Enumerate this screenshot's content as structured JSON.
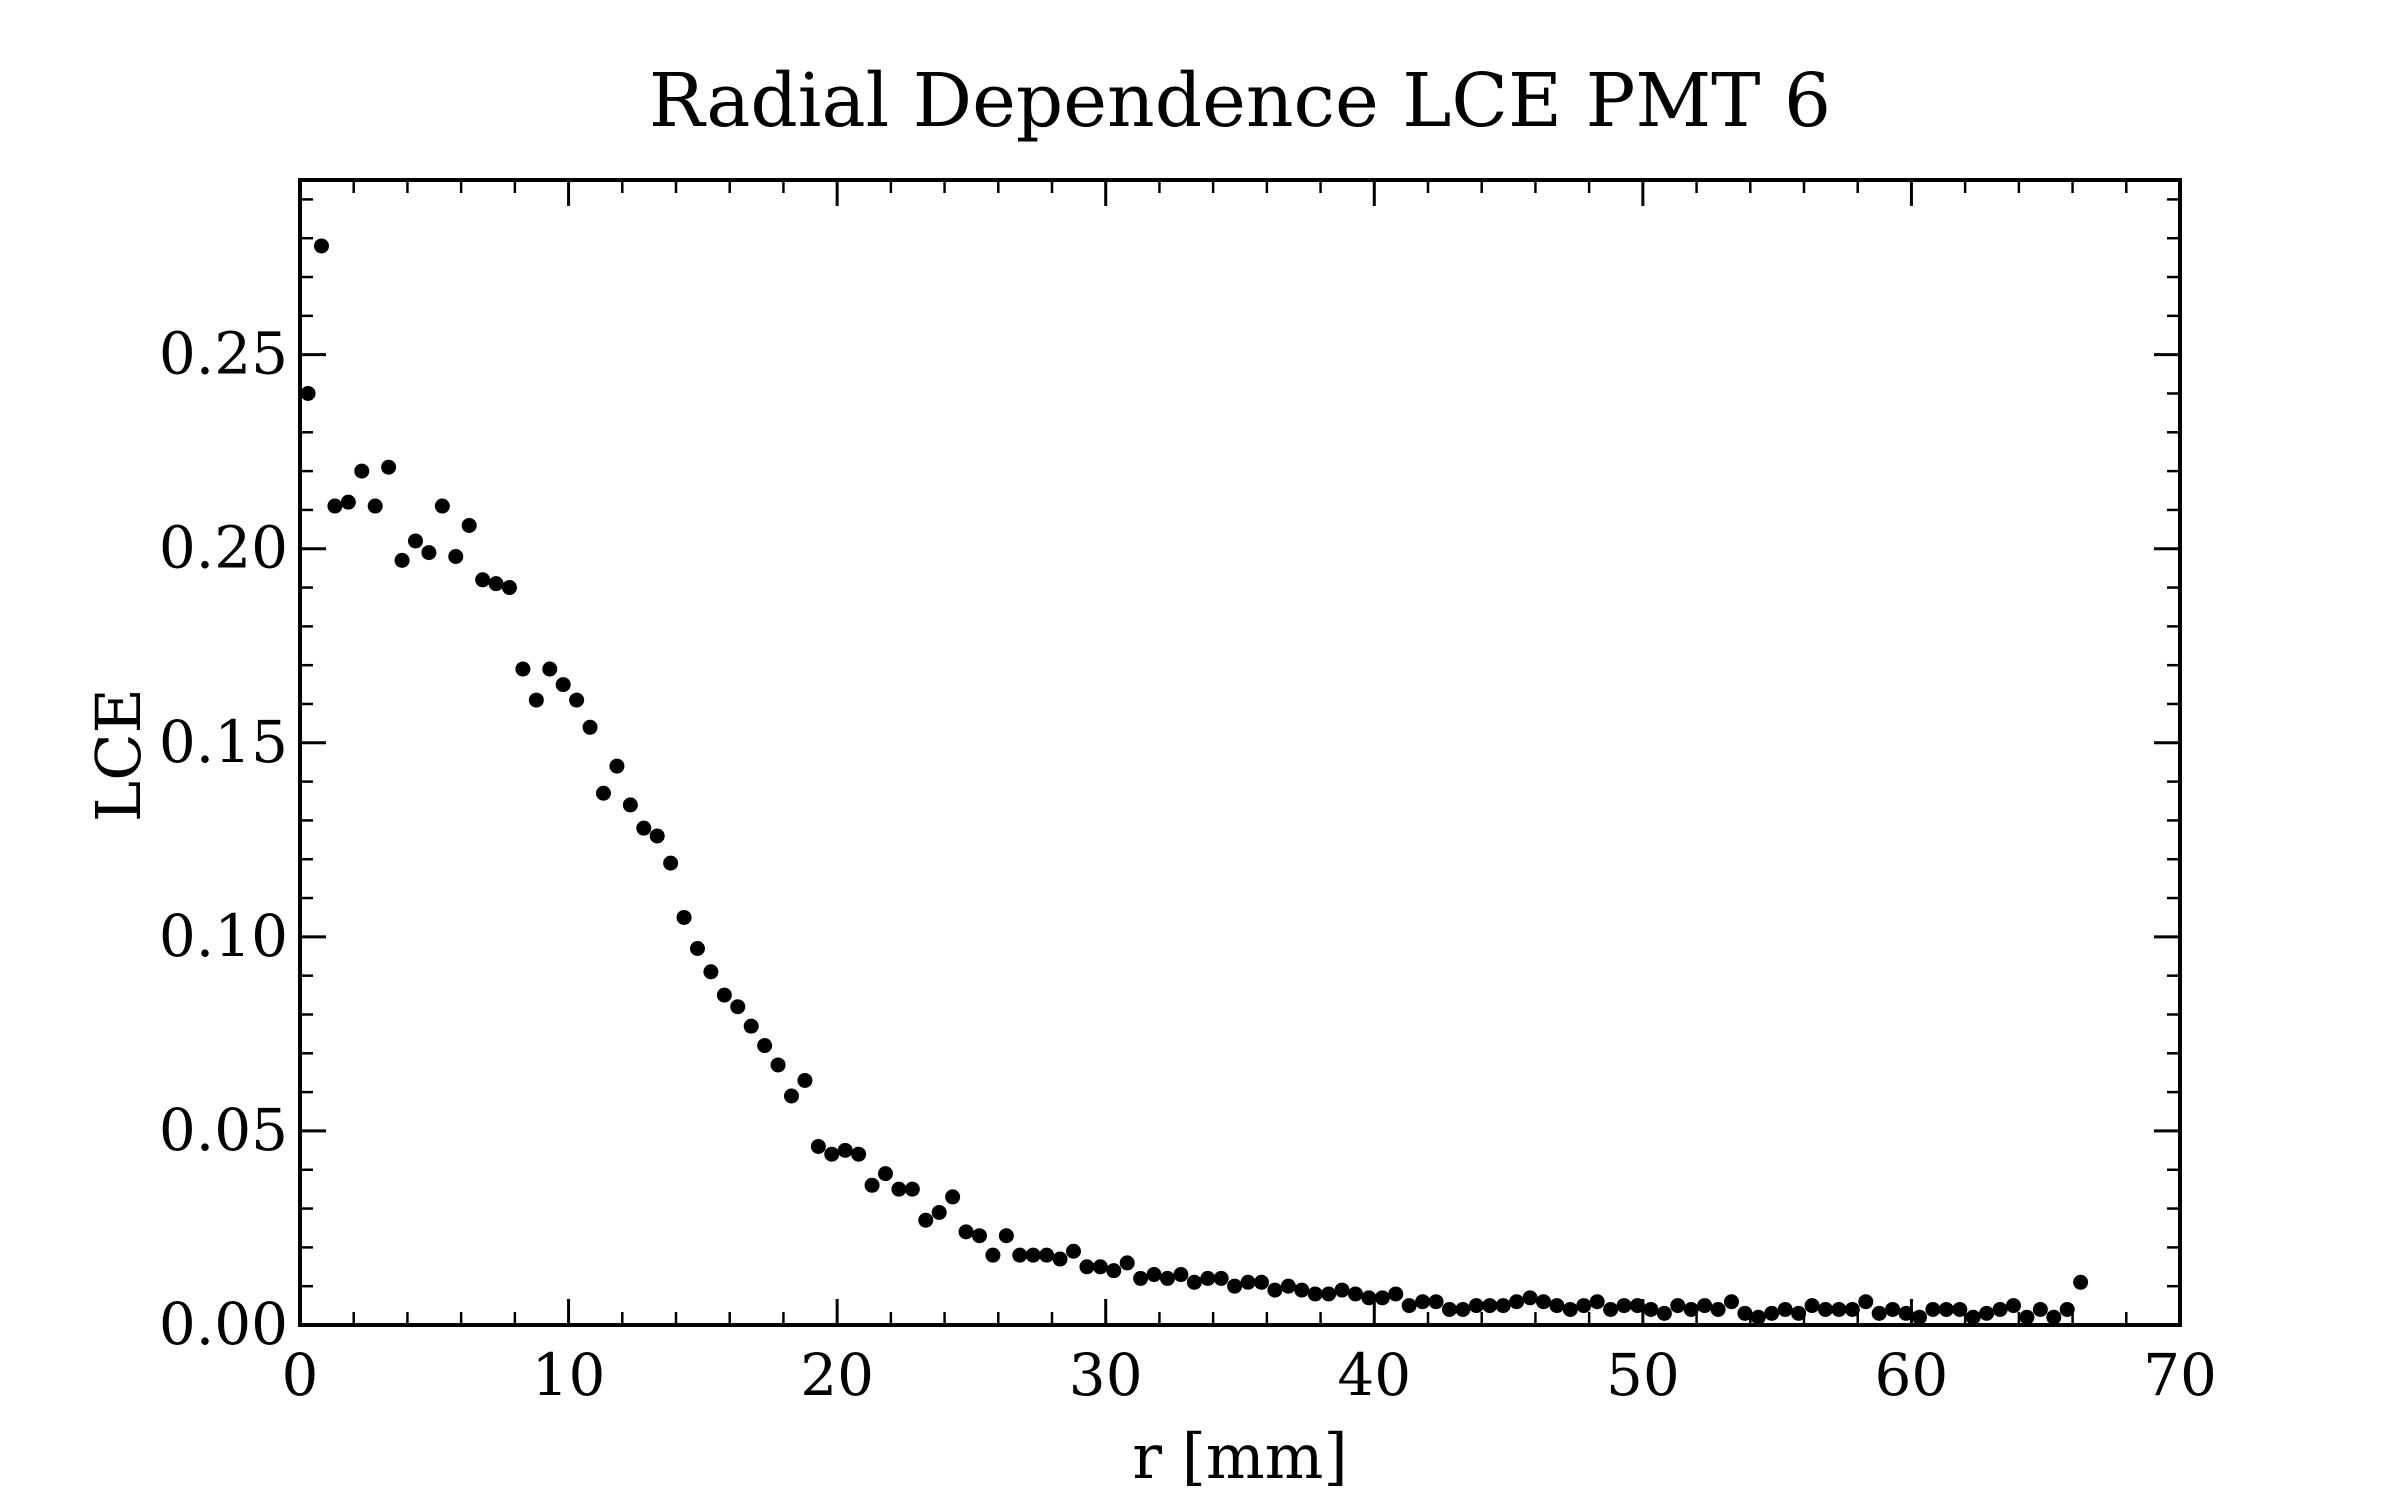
{
  "chart_data": {
    "type": "scatter",
    "title": "Radial Dependence LCE PMT 6",
    "xlabel": "r [mm]",
    "ylabel": "LCE",
    "xlim": [
      0,
      70
    ],
    "ylim": [
      0,
      0.295
    ],
    "xticks": [
      "0",
      "10",
      "20",
      "30",
      "40",
      "50",
      "60",
      "70"
    ],
    "yticks": [
      "0.00",
      "0.05",
      "0.10",
      "0.15",
      "0.20",
      "0.25"
    ],
    "grid": false,
    "legend": false,
    "marker_color": "#000000",
    "series": [
      {
        "x": [
          0.3,
          0.8,
          1.3,
          1.8,
          2.3,
          2.8,
          3.3,
          3.8,
          4.3,
          4.8,
          5.3,
          5.8,
          6.3,
          6.8,
          7.3,
          7.8,
          8.3,
          8.8,
          9.3,
          9.8,
          10.3,
          10.8,
          11.3,
          11.8,
          12.3,
          12.8,
          13.3,
          13.8,
          14.3,
          14.8,
          15.3,
          15.8,
          16.3,
          16.8,
          17.3,
          17.8,
          18.3,
          18.8,
          19.3,
          19.8,
          20.3,
          20.8,
          21.3,
          21.8,
          22.3,
          22.8,
          23.3,
          23.8,
          24.3,
          24.8,
          25.3,
          25.8,
          26.3,
          26.8,
          27.3,
          27.8,
          28.3,
          28.8,
          29.3,
          29.8,
          30.3,
          30.8,
          31.3,
          31.8,
          32.3,
          32.8,
          33.3,
          33.8,
          34.3,
          34.8,
          35.3,
          35.8,
          36.3,
          36.8,
          37.3,
          37.8,
          38.3,
          38.8,
          39.3,
          39.8,
          40.3,
          40.8,
          41.3,
          41.8,
          42.3,
          42.8,
          43.3,
          43.8,
          44.3,
          44.8,
          45.3,
          45.8,
          46.3,
          46.8,
          47.3,
          47.8,
          48.3,
          48.8,
          49.3,
          49.8,
          50.3,
          50.8,
          51.3,
          51.8,
          52.3,
          52.8,
          53.3,
          53.8,
          54.3,
          54.8,
          55.3,
          55.8,
          56.3,
          56.8,
          57.3,
          57.8,
          58.3,
          58.8,
          59.3,
          59.8,
          60.3,
          60.8,
          61.3,
          61.8,
          62.3,
          62.8,
          63.3,
          63.8,
          64.3,
          64.8,
          65.3,
          65.8,
          66.3
        ],
        "y": [
          0.24,
          0.278,
          0.211,
          0.212,
          0.22,
          0.211,
          0.221,
          0.197,
          0.202,
          0.199,
          0.211,
          0.198,
          0.206,
          0.192,
          0.191,
          0.19,
          0.169,
          0.161,
          0.169,
          0.165,
          0.161,
          0.154,
          0.137,
          0.144,
          0.134,
          0.128,
          0.126,
          0.119,
          0.105,
          0.097,
          0.091,
          0.085,
          0.082,
          0.077,
          0.072,
          0.067,
          0.059,
          0.063,
          0.046,
          0.044,
          0.045,
          0.044,
          0.036,
          0.039,
          0.035,
          0.035,
          0.027,
          0.029,
          0.033,
          0.024,
          0.023,
          0.018,
          0.023,
          0.018,
          0.018,
          0.018,
          0.017,
          0.019,
          0.015,
          0.015,
          0.014,
          0.016,
          0.012,
          0.013,
          0.012,
          0.013,
          0.011,
          0.012,
          0.012,
          0.01,
          0.011,
          0.011,
          0.009,
          0.01,
          0.009,
          0.008,
          0.008,
          0.009,
          0.008,
          0.007,
          0.007,
          0.008,
          0.005,
          0.006,
          0.006,
          0.004,
          0.004,
          0.005,
          0.005,
          0.005,
          0.006,
          0.007,
          0.006,
          0.005,
          0.004,
          0.005,
          0.006,
          0.004,
          0.005,
          0.005,
          0.004,
          0.003,
          0.005,
          0.004,
          0.005,
          0.004,
          0.006,
          0.003,
          0.002,
          0.003,
          0.004,
          0.003,
          0.005,
          0.004,
          0.004,
          0.004,
          0.006,
          0.003,
          0.004,
          0.003,
          0.002,
          0.004,
          0.004,
          0.004,
          0.002,
          0.003,
          0.004,
          0.005,
          0.002,
          0.004,
          0.002,
          0.004,
          0.011
        ]
      }
    ]
  }
}
